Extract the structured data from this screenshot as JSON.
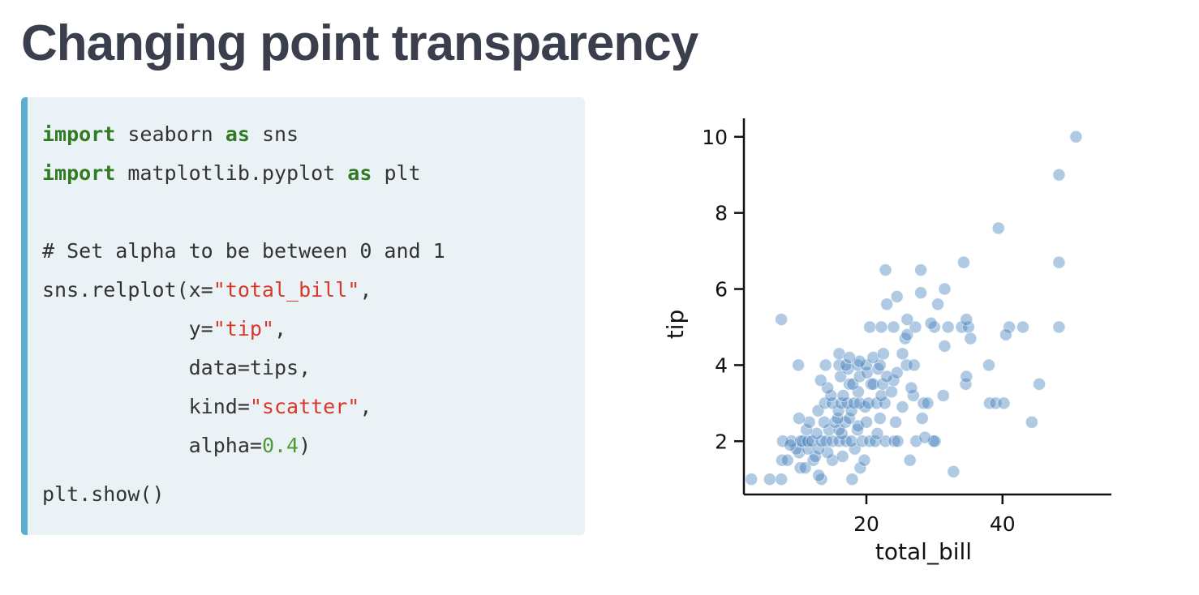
{
  "slide": {
    "title": "Changing point transparency"
  },
  "code": {
    "line1": {
      "kw1": "import",
      "mid": " seaborn ",
      "kw2": "as",
      "end": " sns"
    },
    "line2": {
      "kw1": "import",
      "mid": " matplotlib.pyplot ",
      "kw2": "as",
      "end": " plt"
    },
    "comment": "# Set alpha to be between 0 and 1",
    "relplot": {
      "pre": "sns.relplot(x=",
      "str": "\"total_bill\"",
      "post": ","
    },
    "yarg": {
      "pre": "            y=",
      "str": "\"tip\"",
      "post": ","
    },
    "dataarg": "            data=tips,",
    "kindarg": {
      "pre": "            kind=",
      "str": "\"scatter\"",
      "post": ","
    },
    "alphaarg": {
      "pre": "            alpha=",
      "num": "0.4",
      "post": ")"
    },
    "show": "plt.show()"
  },
  "chart_data": {
    "type": "scatter",
    "xlabel": "total_bill",
    "ylabel": "tip",
    "xticks": [
      20,
      40
    ],
    "yticks": [
      2,
      4,
      6,
      8,
      10
    ],
    "xlim": [
      2,
      56
    ],
    "ylim": [
      0.6,
      10.4
    ],
    "alpha": 0.4,
    "color": "#3d7ab8",
    "points": [
      [
        3.1,
        1.0
      ],
      [
        5.8,
        1.0
      ],
      [
        7.5,
        1.0
      ],
      [
        13.4,
        1.0
      ],
      [
        17.9,
        1.0
      ],
      [
        13.0,
        1.1
      ],
      [
        32.8,
        1.2
      ],
      [
        19.1,
        1.3
      ],
      [
        10.3,
        1.3
      ],
      [
        11.0,
        1.3
      ],
      [
        7.6,
        1.5
      ],
      [
        8.4,
        1.5
      ],
      [
        12.2,
        1.5
      ],
      [
        15.0,
        1.5
      ],
      [
        19.7,
        1.5
      ],
      [
        26.4,
        1.5
      ],
      [
        10.1,
        1.7
      ],
      [
        12.5,
        1.6
      ],
      [
        14.3,
        1.7
      ],
      [
        16.5,
        1.6
      ],
      [
        9.7,
        1.8
      ],
      [
        11.4,
        1.8
      ],
      [
        13.0,
        1.8
      ],
      [
        18.3,
        1.8
      ],
      [
        9.0,
        2.0
      ],
      [
        7.7,
        2.0
      ],
      [
        10.3,
        2.0
      ],
      [
        10.6,
        2.0
      ],
      [
        11.4,
        2.0
      ],
      [
        12.0,
        2.0
      ],
      [
        13.4,
        2.0
      ],
      [
        14.1,
        2.0
      ],
      [
        15.0,
        2.0
      ],
      [
        16.0,
        2.0
      ],
      [
        17.0,
        2.0
      ],
      [
        17.8,
        2.0
      ],
      [
        19.4,
        2.0
      ],
      [
        20.5,
        2.0
      ],
      [
        21.3,
        2.0
      ],
      [
        22.8,
        2.0
      ],
      [
        24.1,
        2.0
      ],
      [
        24.6,
        2.0
      ],
      [
        27.3,
        2.0
      ],
      [
        30.1,
        2.0
      ],
      [
        29.9,
        2.0
      ],
      [
        12.7,
        2.2
      ],
      [
        16.4,
        2.2
      ],
      [
        21.6,
        2.2
      ],
      [
        28.6,
        2.1
      ],
      [
        8.8,
        1.9
      ],
      [
        11.2,
        2.3
      ],
      [
        14.5,
        2.3
      ],
      [
        16.0,
        2.3
      ],
      [
        18.7,
        2.3
      ],
      [
        11.6,
        2.5
      ],
      [
        13.8,
        2.5
      ],
      [
        15.4,
        2.5
      ],
      [
        16.9,
        2.5
      ],
      [
        18.8,
        2.4
      ],
      [
        20.0,
        2.5
      ],
      [
        24.3,
        2.5
      ],
      [
        10.1,
        2.6
      ],
      [
        15.8,
        2.6
      ],
      [
        17.5,
        2.6
      ],
      [
        22.0,
        2.6
      ],
      [
        28.2,
        2.6
      ],
      [
        44.3,
        2.5
      ],
      [
        12.9,
        2.8
      ],
      [
        15.9,
        2.8
      ],
      [
        17.8,
        2.8
      ],
      [
        19.8,
        2.9
      ],
      [
        25.3,
        2.9
      ],
      [
        13.9,
        3.0
      ],
      [
        15.0,
        3.0
      ],
      [
        16.3,
        3.0
      ],
      [
        17.2,
        3.0
      ],
      [
        18.2,
        3.0
      ],
      [
        19.0,
        3.0
      ],
      [
        20.3,
        3.0
      ],
      [
        21.5,
        3.0
      ],
      [
        22.7,
        3.0
      ],
      [
        28.4,
        3.0
      ],
      [
        29.0,
        3.0
      ],
      [
        38.1,
        3.0
      ],
      [
        39.0,
        3.0
      ],
      [
        40.2,
        3.0
      ],
      [
        14.8,
        3.2
      ],
      [
        16.6,
        3.2
      ],
      [
        18.8,
        3.3
      ],
      [
        22.2,
        3.2
      ],
      [
        23.7,
        3.3
      ],
      [
        26.9,
        3.2
      ],
      [
        31.3,
        3.2
      ],
      [
        14.3,
        3.4
      ],
      [
        17.5,
        3.5
      ],
      [
        18.0,
        3.5
      ],
      [
        20.7,
        3.5
      ],
      [
        21.0,
        3.5
      ],
      [
        22.4,
        3.5
      ],
      [
        24.0,
        3.6
      ],
      [
        26.6,
        3.4
      ],
      [
        34.6,
        3.5
      ],
      [
        45.4,
        3.5
      ],
      [
        13.3,
        3.6
      ],
      [
        16.2,
        3.7
      ],
      [
        19.0,
        3.7
      ],
      [
        20.1,
        3.8
      ],
      [
        23.0,
        3.7
      ],
      [
        34.7,
        3.7
      ],
      [
        17.3,
        3.9
      ],
      [
        21.7,
        3.9
      ],
      [
        24.5,
        3.8
      ],
      [
        10.0,
        4.0
      ],
      [
        14.0,
        4.0
      ],
      [
        16.0,
        4.0
      ],
      [
        17.0,
        4.0
      ],
      [
        18.7,
        4.0
      ],
      [
        20.0,
        4.0
      ],
      [
        22.0,
        4.0
      ],
      [
        25.9,
        4.0
      ],
      [
        27.0,
        4.0
      ],
      [
        38.0,
        4.0
      ],
      [
        16.0,
        4.3
      ],
      [
        19.0,
        4.1
      ],
      [
        21.0,
        4.2
      ],
      [
        22.5,
        4.3
      ],
      [
        25.3,
        4.3
      ],
      [
        17.5,
        4.2
      ],
      [
        31.5,
        4.5
      ],
      [
        25.7,
        4.7
      ],
      [
        26.0,
        4.8
      ],
      [
        30.0,
        5.0
      ],
      [
        32.0,
        5.0
      ],
      [
        34.0,
        5.0
      ],
      [
        24.0,
        5.0
      ],
      [
        20.5,
        5.0
      ],
      [
        22.2,
        5.0
      ],
      [
        27.2,
        5.0
      ],
      [
        35.0,
        5.0
      ],
      [
        41.0,
        5.0
      ],
      [
        43.0,
        5.0
      ],
      [
        48.3,
        5.0
      ],
      [
        7.5,
        5.2
      ],
      [
        26.0,
        5.2
      ],
      [
        29.5,
        5.1
      ],
      [
        34.7,
        5.2
      ],
      [
        35.3,
        4.7
      ],
      [
        40.5,
        4.8
      ],
      [
        28.0,
        5.9
      ],
      [
        23.0,
        5.6
      ],
      [
        24.5,
        5.8
      ],
      [
        30.5,
        5.6
      ],
      [
        31.5,
        6.0
      ],
      [
        22.8,
        6.5
      ],
      [
        28.0,
        6.5
      ],
      [
        34.3,
        6.7
      ],
      [
        48.3,
        6.7
      ],
      [
        39.4,
        7.6
      ],
      [
        48.3,
        9.0
      ],
      [
        50.8,
        10.0
      ]
    ]
  }
}
